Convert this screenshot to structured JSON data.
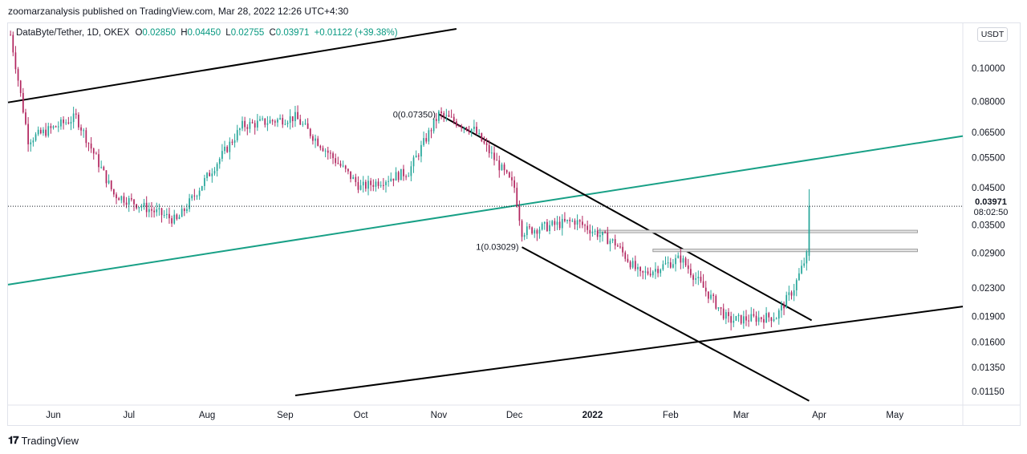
{
  "header": {
    "published": "zoomarzanalysis published on TradingView.com, Mar 28, 2022 12:26 UTC+4:30"
  },
  "legend": {
    "symbol": "DataByte/Tether, 1D, OKEX",
    "open_label": "O",
    "open": "0.02850",
    "high_label": "H",
    "high": "0.04450",
    "low_label": "L",
    "low": "0.02755",
    "close_label": "C",
    "close": "0.03971",
    "change": "+0.01122 (+39.38%)"
  },
  "price_axis": {
    "unit_button": "USDT",
    "current_price": "0.03971",
    "countdown": "08:02:50"
  },
  "footer": {
    "brand": "TradingView"
  },
  "colors": {
    "up": "#26a69a",
    "down": "#b2265f",
    "channel": "#000000",
    "trendline": "#18a086"
  },
  "chart_data": {
    "type": "candlestick",
    "scale": "log",
    "ylim": [
      0.0105,
      0.135
    ],
    "y_ticks": [
      "0.10000",
      "0.08000",
      "0.06500",
      "0.05500",
      "0.04500",
      "0.03500",
      "0.02900",
      "0.02300",
      "0.01900",
      "0.01600",
      "0.01350",
      "0.01150"
    ],
    "x_ticks": [
      "Jun",
      "Jul",
      "Aug",
      "Sep",
      "Oct",
      "Nov",
      "Dec",
      "2022",
      "Feb",
      "Mar",
      "Apr",
      "May"
    ],
    "x_range": [
      "2021-05-14",
      "2022-05-28"
    ],
    "key_points": [
      {
        "date": "2021-05-15",
        "price": 0.125
      },
      {
        "date": "2021-05-22",
        "price": 0.062
      },
      {
        "date": "2021-06-10",
        "price": 0.072
      },
      {
        "date": "2021-06-25",
        "price": 0.043
      },
      {
        "date": "2021-07-20",
        "price": 0.036
      },
      {
        "date": "2021-08-15",
        "price": 0.068
      },
      {
        "date": "2021-09-05",
        "price": 0.072
      },
      {
        "date": "2021-10-01",
        "price": 0.045
      },
      {
        "date": "2021-10-20",
        "price": 0.05
      },
      {
        "date": "2021-11-01",
        "price": 0.0735
      },
      {
        "date": "2021-11-15",
        "price": 0.066
      },
      {
        "date": "2021-12-01",
        "price": 0.045
      },
      {
        "date": "2021-12-04",
        "price": 0.0335
      },
      {
        "date": "2021-12-25",
        "price": 0.036
      },
      {
        "date": "2022-01-10",
        "price": 0.031
      },
      {
        "date": "2022-01-20",
        "price": 0.025
      },
      {
        "date": "2022-02-05",
        "price": 0.028
      },
      {
        "date": "2022-02-24",
        "price": 0.0185
      },
      {
        "date": "2022-03-15",
        "price": 0.019
      },
      {
        "date": "2022-03-22",
        "price": 0.023
      },
      {
        "date": "2022-03-27",
        "price": 0.0285
      },
      {
        "date": "2022-03-28",
        "price": 0.03971
      }
    ],
    "fib_labels": [
      {
        "text": "0(0.07350)",
        "date": "2021-11-01",
        "price": 0.0735
      },
      {
        "text": "1(0.03029)",
        "date": "2021-12-04",
        "price": 0.03029
      }
    ],
    "lines": [
      {
        "name": "upper-channel",
        "color": "black",
        "from": [
          "2021-05-14",
          0.0795
        ],
        "to": [
          "2021-11-08",
          0.13
        ]
      },
      {
        "name": "rising-trendline",
        "color": "green",
        "from": [
          "2021-05-14",
          0.0235
        ],
        "to": [
          "2022-05-28",
          0.0635
        ]
      },
      {
        "name": "lower-channel",
        "color": "black",
        "from": [
          "2021-09-05",
          0.0112
        ],
        "to": [
          "2022-05-28",
          0.0203
        ]
      },
      {
        "name": "descending-channel-top",
        "color": "black",
        "from": [
          "2021-11-01",
          0.0735
        ],
        "to": [
          "2022-03-29",
          0.0185
        ]
      },
      {
        "name": "descending-channel-bottom",
        "color": "black",
        "from": [
          "2021-12-04",
          0.0302
        ],
        "to": [
          "2022-03-28",
          0.0108
        ]
      }
    ],
    "zones": [
      {
        "name": "resistance-zone-upper",
        "from": "2022-01-03",
        "to": "2022-05-10",
        "price_high": 0.0338,
        "price_low": 0.0333
      },
      {
        "name": "resistance-zone-lower",
        "from": "2022-01-25",
        "to": "2022-05-10",
        "price_high": 0.0298,
        "price_low": 0.0293
      }
    ]
  }
}
